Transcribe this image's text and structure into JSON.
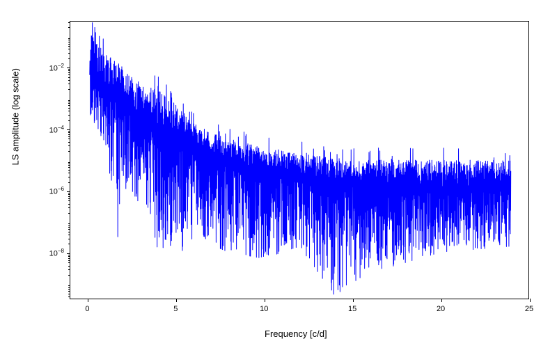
{
  "chart": {
    "type": "line",
    "xlabel": "Frequency [c/d]",
    "ylabel": "LS amplitude (log scale)",
    "line_color": "#0000ff",
    "line_width": 1.0,
    "background_color": "#ffffff",
    "border_color": "#000000",
    "xlim": [
      -1,
      25
    ],
    "ylim_log": [
      -9.5,
      -0.5
    ],
    "xticks": [
      0,
      5,
      10,
      15,
      20,
      25
    ],
    "yticks_exp": [
      -8,
      -6,
      -4,
      -2
    ],
    "yticks_minor_exp": [
      -9,
      -7,
      -5,
      -3,
      -1
    ],
    "label_fontsize": 13,
    "tick_fontsize": 11,
    "data_x_range": [
      0.1,
      24
    ],
    "noise_seed": 42,
    "envelope_high_log": [
      [
        0.1,
        -1.0
      ],
      [
        0.4,
        -0.5
      ],
      [
        0.6,
        -1.2
      ],
      [
        1.0,
        -1.5
      ],
      [
        2.0,
        -2.0
      ],
      [
        3.0,
        -2.5
      ],
      [
        4.0,
        -2.7
      ],
      [
        5.0,
        -3.2
      ],
      [
        6.0,
        -3.8
      ],
      [
        8.0,
        -4.3
      ],
      [
        10.0,
        -4.6
      ],
      [
        12.0,
        -4.8
      ],
      [
        15.0,
        -5.0
      ],
      [
        20.0,
        -5.0
      ],
      [
        24.0,
        -5.0
      ]
    ],
    "envelope_low_log": [
      [
        0.1,
        -3.5
      ],
      [
        1.0,
        -4.5
      ],
      [
        1.8,
        -8.0
      ],
      [
        2.0,
        -5.5
      ],
      [
        2.5,
        -7.0
      ],
      [
        3.0,
        -6.0
      ],
      [
        4.0,
        -8.0
      ],
      [
        5.0,
        -8.2
      ],
      [
        6.0,
        -7.5
      ],
      [
        8.0,
        -8.0
      ],
      [
        10.0,
        -8.2
      ],
      [
        12.0,
        -7.8
      ],
      [
        14.0,
        -9.4
      ],
      [
        16.0,
        -8.6
      ],
      [
        17.0,
        -8.5
      ],
      [
        20.0,
        -8.0
      ],
      [
        24.0,
        -7.8
      ]
    ],
    "envelope_mid_log": [
      [
        0.1,
        -2.2
      ],
      [
        1.0,
        -2.8
      ],
      [
        2.0,
        -3.3
      ],
      [
        3.0,
        -3.8
      ],
      [
        4.0,
        -4.2
      ],
      [
        5.0,
        -4.5
      ],
      [
        7.0,
        -5.0
      ],
      [
        10.0,
        -5.5
      ],
      [
        14.0,
        -5.8
      ],
      [
        18.0,
        -6.0
      ],
      [
        24.0,
        -6.0
      ]
    ]
  }
}
